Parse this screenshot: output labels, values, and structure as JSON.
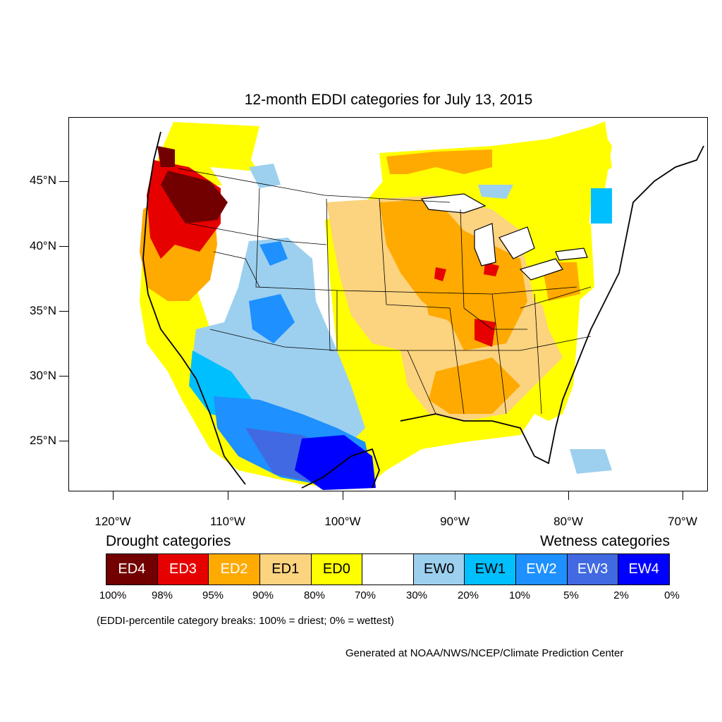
{
  "title": "12-month EDDI categories for July 13, 2015",
  "lat_labels": [
    "45°N",
    "40°N",
    "35°N",
    "30°N",
    "25°N"
  ],
  "lon_labels": [
    "120°W",
    "110°W",
    "100°W",
    "90°W",
    "80°W",
    "70°W"
  ],
  "legend": {
    "drought_heading": "Drought categories",
    "wetness_heading": "Wetness categories",
    "categories": [
      {
        "label": "ED4",
        "color": "#730000",
        "text_color": "#ffffff"
      },
      {
        "label": "ED3",
        "color": "#e60000",
        "text_color": "#ffffff"
      },
      {
        "label": "ED2",
        "color": "#ffaa00",
        "text_color": "#ffffff"
      },
      {
        "label": "ED1",
        "color": "#fcd37f",
        "text_color": "#000000"
      },
      {
        "label": "ED0",
        "color": "#ffff00",
        "text_color": "#000000"
      },
      {
        "label": "",
        "color": "#ffffff",
        "text_color": "#000000"
      },
      {
        "label": "EW0",
        "color": "#9dd0ef",
        "text_color": "#000000"
      },
      {
        "label": "EW1",
        "color": "#00bfff",
        "text_color": "#000000"
      },
      {
        "label": "EW2",
        "color": "#1e90ff",
        "text_color": "#ffffff"
      },
      {
        "label": "EW3",
        "color": "#4169e1",
        "text_color": "#ffffff"
      },
      {
        "label": "EW4",
        "color": "#0000ff",
        "text_color": "#ffffff"
      }
    ],
    "breaks": [
      "100%",
      "98%",
      "95%",
      "90%",
      "80%",
      "70%",
      "30%",
      "20%",
      "10%",
      "5%",
      "2%",
      "0%"
    ]
  },
  "note": "(EDDI-percentile category breaks: 100% = driest; 0% = wettest)",
  "credit": "Generated at NOAA/NWS/NCEP/Climate Prediction Center"
}
